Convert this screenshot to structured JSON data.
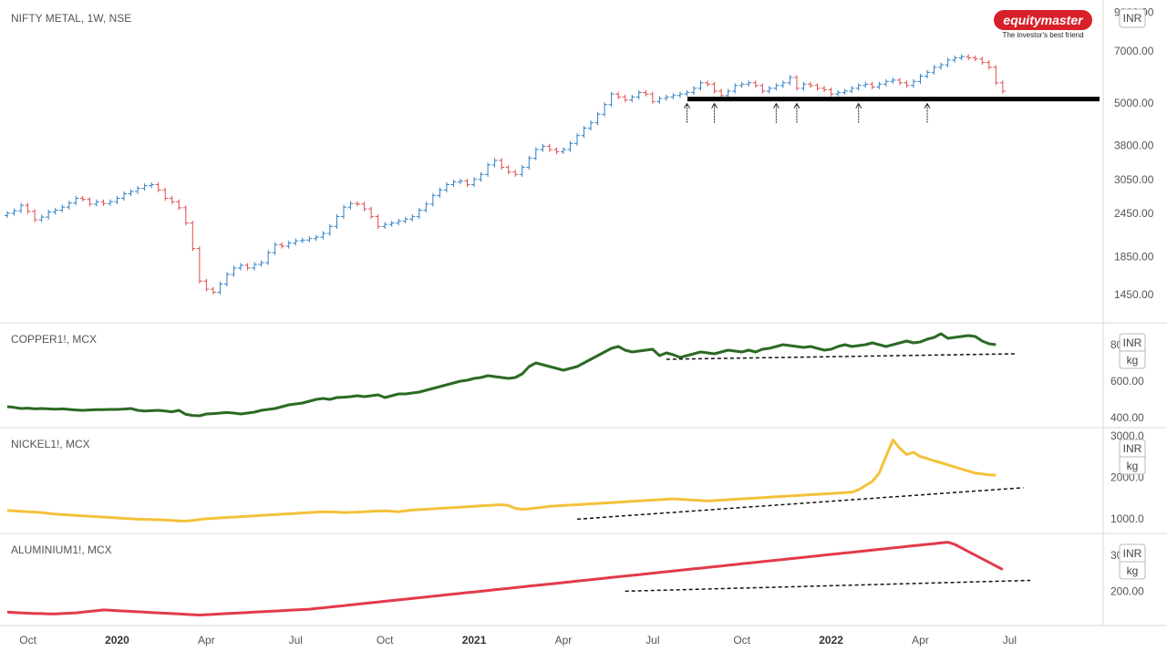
{
  "brand": {
    "name": "equitymaster",
    "tagline": "The investor's best friend",
    "color": "#d8202a"
  },
  "colors": {
    "up": "#2e7fc4",
    "down": "#e04b4b",
    "copper": "#2b6a23",
    "nickel": "#f5c13b",
    "aluminium": "#e33a4b"
  },
  "x_axis": {
    "labels": [
      {
        "text": "Oct",
        "t": 3,
        "bold": false
      },
      {
        "text": "2020",
        "t": 16,
        "bold": true
      },
      {
        "text": "Apr",
        "t": 29,
        "bold": false
      },
      {
        "text": "Jul",
        "t": 42,
        "bold": false
      },
      {
        "text": "Oct",
        "t": 55,
        "bold": false
      },
      {
        "text": "2021",
        "t": 68,
        "bold": true
      },
      {
        "text": "Apr",
        "t": 81,
        "bold": false
      },
      {
        "text": "Jul",
        "t": 94,
        "bold": false
      },
      {
        "text": "Oct",
        "t": 107,
        "bold": false
      },
      {
        "text": "2022",
        "t": 120,
        "bold": true
      },
      {
        "text": "Apr",
        "t": 133,
        "bold": false
      },
      {
        "text": "Jul",
        "t": 146,
        "bold": false
      }
    ]
  },
  "chart_data": [
    {
      "type": "candlestick",
      "title": "NIFTY METAL, 1W, NSE",
      "unit": "INR",
      "scale": "log",
      "ylim": [
        1250,
        9400
      ],
      "y_ticks": [
        "9000.00",
        "7000.00",
        "5000.00",
        "3800.00",
        "3050.00",
        "2450.00",
        "1850.00",
        "1450.00"
      ],
      "y_tick_values": [
        9000,
        7000,
        5000,
        3800,
        3050,
        2450,
        1850,
        1450
      ],
      "close": [
        2450,
        2490,
        2580,
        2480,
        2350,
        2390,
        2470,
        2500,
        2550,
        2620,
        2700,
        2680,
        2600,
        2640,
        2610,
        2640,
        2700,
        2780,
        2820,
        2880,
        2930,
        2950,
        2850,
        2700,
        2640,
        2540,
        2300,
        1950,
        1580,
        1500,
        1470,
        1550,
        1650,
        1720,
        1750,
        1720,
        1760,
        1780,
        1900,
        2000,
        1980,
        2020,
        2050,
        2060,
        2080,
        2100,
        2150,
        2250,
        2400,
        2550,
        2610,
        2600,
        2520,
        2400,
        2250,
        2280,
        2300,
        2330,
        2360,
        2400,
        2500,
        2600,
        2750,
        2850,
        2950,
        3000,
        3020,
        2950,
        3050,
        3150,
        3350,
        3450,
        3300,
        3200,
        3150,
        3300,
        3500,
        3700,
        3780,
        3700,
        3650,
        3700,
        3850,
        4050,
        4250,
        4400,
        4650,
        4950,
        5300,
        5200,
        5100,
        5200,
        5350,
        5300,
        5050,
        5150,
        5200,
        5250,
        5300,
        5350,
        5500,
        5700,
        5650,
        5400,
        5250,
        5400,
        5600,
        5650,
        5700,
        5600,
        5400,
        5500,
        5600,
        5700,
        5900,
        5500,
        5650,
        5600,
        5500,
        5450,
        5300,
        5350,
        5400,
        5500,
        5600,
        5650,
        5550,
        5650,
        5750,
        5800,
        5700,
        5600,
        5750,
        5950,
        6100,
        6300,
        6400,
        6600,
        6700,
        6750,
        6700,
        6650,
        6500,
        6300,
        5700,
        5400
      ],
      "support_level": 5130,
      "marker_weeks": [
        99,
        103,
        112,
        115,
        124,
        134
      ]
    },
    {
      "type": "line",
      "title": "COPPER1!, MCX",
      "unit": [
        "INR",
        "kg"
      ],
      "ylim": [
        380,
        880
      ],
      "y_ticks": [
        "800.00",
        "600.00",
        "400.00"
      ],
      "y_tick_values": [
        800,
        600,
        400
      ],
      "series": [
        {
          "values": [
            460,
            456,
            450,
            452,
            448,
            450,
            448,
            446,
            448,
            445,
            442,
            440,
            442,
            444,
            444,
            445,
            445,
            447,
            450,
            440,
            436,
            438,
            440,
            436,
            432,
            440,
            418,
            412,
            410,
            420,
            422,
            425,
            428,
            425,
            420,
            425,
            430,
            440,
            445,
            450,
            460,
            470,
            475,
            480,
            490,
            500,
            505,
            500,
            510,
            512,
            515,
            520,
            515,
            520,
            525,
            510,
            520,
            530,
            530,
            535,
            540,
            550,
            560,
            570,
            580,
            590,
            600,
            605,
            615,
            620,
            630,
            625,
            620,
            615,
            620,
            640,
            680,
            700,
            690,
            680,
            670,
            660,
            670,
            680,
            700,
            720,
            740,
            760,
            780,
            790,
            770,
            760,
            765,
            770,
            775,
            740,
            755,
            745,
            730,
            740,
            750,
            760,
            755,
            750,
            760,
            770,
            765,
            760,
            770,
            760,
            775,
            780,
            790,
            800,
            795,
            790,
            785,
            790,
            780,
            770,
            775,
            790,
            800,
            790,
            795,
            800,
            810,
            800,
            790,
            800,
            810,
            820,
            810,
            815,
            830,
            840,
            860,
            835,
            840,
            845,
            850,
            845,
            820,
            805,
            800
          ]
        }
      ],
      "trendline": {
        "from": [
          96,
          720
        ],
        "to": [
          147,
          750
        ]
      }
    },
    {
      "type": "line",
      "title": "NICKEL1!, MCX",
      "unit": [
        "INR",
        "kg"
      ],
      "ylim": [
        800,
        3000
      ],
      "y_ticks": [
        "3000.0",
        "2000.0",
        "1000.0"
      ],
      "y_tick_values": [
        3000,
        2000,
        1000
      ],
      "series": [
        {
          "values": [
            1200,
            1190,
            1180,
            1170,
            1160,
            1150,
            1130,
            1110,
            1100,
            1090,
            1080,
            1070,
            1060,
            1050,
            1040,
            1030,
            1020,
            1010,
            1000,
            990,
            985,
            980,
            975,
            970,
            960,
            950,
            945,
            960,
            980,
            1000,
            1010,
            1020,
            1030,
            1040,
            1050,
            1060,
            1070,
            1080,
            1090,
            1100,
            1110,
            1120,
            1130,
            1140,
            1150,
            1160,
            1165,
            1170,
            1160,
            1150,
            1155,
            1160,
            1170,
            1180,
            1185,
            1190,
            1180,
            1170,
            1190,
            1210,
            1220,
            1230,
            1240,
            1250,
            1260,
            1270,
            1280,
            1290,
            1300,
            1310,
            1320,
            1330,
            1340,
            1320,
            1250,
            1230,
            1240,
            1260,
            1280,
            1300,
            1310,
            1320,
            1330,
            1340,
            1350,
            1360,
            1370,
            1380,
            1390,
            1400,
            1410,
            1420,
            1430,
            1440,
            1450,
            1460,
            1470,
            1480,
            1470,
            1460,
            1450,
            1440,
            1430,
            1440,
            1450,
            1460,
            1470,
            1480,
            1490,
            1500,
            1510,
            1520,
            1530,
            1540,
            1550,
            1560,
            1570,
            1580,
            1590,
            1600,
            1610,
            1620,
            1630,
            1640,
            1700,
            1800,
            1900,
            2100,
            2500,
            2900,
            2700,
            2550,
            2600,
            2500,
            2450,
            2400,
            2350,
            2300,
            2250,
            2200,
            2150,
            2100,
            2080,
            2060,
            2050
          ]
        }
      ],
      "trendline": {
        "from": [
          83,
          990
        ],
        "to": [
          148,
          1750
        ]
      }
    },
    {
      "type": "line",
      "title": "ALUMINIUM1!, MCX",
      "unit": [
        "INR",
        "kg"
      ],
      "ylim": [
        120,
        340
      ],
      "y_ticks": [
        "300.00",
        "200.00"
      ],
      "y_tick_values": [
        300,
        200
      ],
      "series": [
        {
          "values": [
            142,
            141,
            140,
            139,
            138,
            138,
            137,
            137,
            138,
            139,
            140,
            142,
            144,
            146,
            148,
            147,
            146,
            145,
            144,
            143,
            142,
            141,
            140,
            139,
            138,
            137,
            136,
            135,
            134,
            135,
            136,
            137,
            138,
            139,
            140,
            141,
            142,
            143,
            144,
            145,
            146,
            147,
            148,
            149,
            150,
            152,
            154,
            156,
            158,
            160,
            162,
            164,
            166,
            168,
            170,
            172,
            174,
            176,
            178,
            180,
            182,
            184,
            186,
            188,
            190,
            192,
            194,
            196,
            198,
            200,
            202,
            204,
            206,
            208,
            210,
            212,
            214,
            216,
            218,
            220,
            222,
            224,
            226,
            228,
            230,
            232,
            234,
            236,
            238,
            240,
            242,
            244,
            246,
            248,
            250,
            252,
            254,
            256,
            258,
            260,
            262,
            264,
            266,
            268,
            270,
            272,
            274,
            276,
            278,
            280,
            282,
            284,
            286,
            288,
            290,
            292,
            294,
            296,
            298,
            300,
            302,
            304,
            306,
            308,
            310,
            312,
            314,
            316,
            318,
            320,
            322,
            324,
            326,
            328,
            330,
            332,
            334,
            336,
            330,
            320,
            310,
            300,
            290,
            280,
            270,
            260
          ]
        }
      ],
      "trendline": {
        "from": [
          90,
          200
        ],
        "to": [
          149,
          230
        ]
      }
    }
  ]
}
